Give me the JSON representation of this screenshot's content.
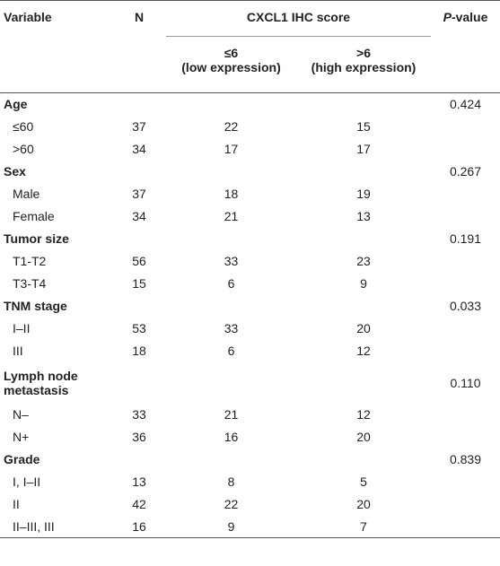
{
  "header": {
    "variable": "Variable",
    "n": "N",
    "score": "CXCL1 IHC score",
    "low_symbol": "≤6",
    "low": "(low expression)",
    "high_symbol": ">6",
    "high": "(high expression)",
    "p_italic": "P",
    "p_rest": "-value"
  },
  "groups": [
    {
      "name": "Age",
      "p": "0.424",
      "rows": [
        [
          "≤60",
          37,
          22,
          15
        ],
        [
          ">60",
          34,
          17,
          17
        ]
      ]
    },
    {
      "name": "Sex",
      "p": "0.267",
      "rows": [
        [
          "Male",
          37,
          18,
          19
        ],
        [
          "Female",
          34,
          21,
          13
        ]
      ]
    },
    {
      "name": "Tumor size",
      "p": "0.191",
      "rows": [
        [
          "T1-T2",
          56,
          33,
          23
        ],
        [
          "T3-T4",
          15,
          6,
          9
        ]
      ]
    },
    {
      "name": "TNM stage",
      "p": "0.033",
      "rows": [
        [
          "I–II",
          53,
          33,
          20
        ],
        [
          "III",
          18,
          6,
          12
        ]
      ]
    },
    {
      "name": "Lymph node metastasis",
      "p": "0.110",
      "rows": [
        [
          "N–",
          33,
          21,
          12
        ],
        [
          "N+",
          36,
          16,
          20
        ]
      ]
    },
    {
      "name": "Grade",
      "p": "0.839",
      "rows": [
        [
          "I, I–II",
          13,
          8,
          5
        ],
        [
          "II",
          42,
          22,
          20
        ],
        [
          "II–III, III",
          16,
          9,
          7
        ]
      ]
    }
  ]
}
